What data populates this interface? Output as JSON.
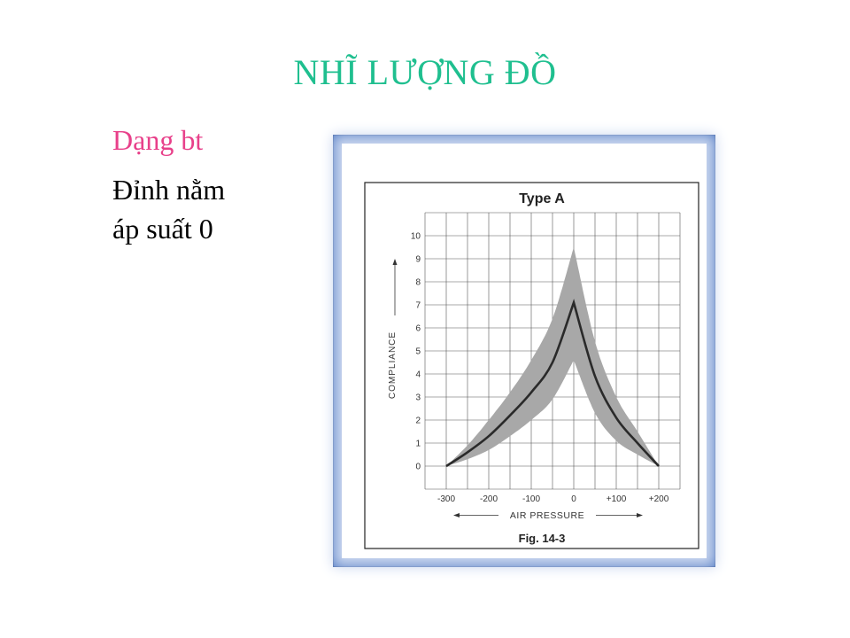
{
  "slide": {
    "title": "NHĨ LƯỢNG ĐỒ",
    "subtitle": "Dạng bt",
    "body_lines": [
      "Đỉnh nằm",
      "áp suất  0"
    ]
  },
  "colors": {
    "title": "#1fbf8f",
    "subtitle": "#e8408a",
    "frame": "#4f79c2",
    "band": "#a8a8a8",
    "curve": "#2a2a2a"
  },
  "chart_data": {
    "type": "line",
    "title": "Type A",
    "xlabel": "AIR PRESSURE",
    "ylabel": "COMPLIANCE",
    "caption": "Fig. 14-3",
    "x_ticks": [
      "-300",
      "-200",
      "-100",
      "0",
      "+100",
      "+200"
    ],
    "y_ticks": [
      "0",
      "1",
      "2",
      "3",
      "4",
      "5",
      "6",
      "7",
      "8",
      "9",
      "10"
    ],
    "xlim": [
      -300,
      200
    ],
    "ylim": [
      0,
      10
    ],
    "grid": true,
    "series": [
      {
        "x": [
          -300,
          -250,
          -200,
          -150,
          -100,
          -50,
          0,
          50,
          100,
          150,
          200
        ],
        "y": [
          0,
          0.6,
          1.3,
          2.2,
          3.2,
          4.5,
          7.1,
          3.9,
          2.1,
          1.0,
          0
        ]
      }
    ],
    "band": {
      "x": [
        -300,
        -250,
        -200,
        -150,
        -100,
        -50,
        0,
        50,
        100,
        150,
        200
      ],
      "upper": [
        0,
        0.9,
        2.0,
        3.2,
        4.6,
        6.4,
        9.5,
        5.4,
        3.0,
        1.5,
        0
      ],
      "lower": [
        0,
        0.3,
        0.7,
        1.3,
        2.0,
        2.9,
        4.6,
        2.3,
        1.1,
        0.5,
        0
      ]
    }
  }
}
